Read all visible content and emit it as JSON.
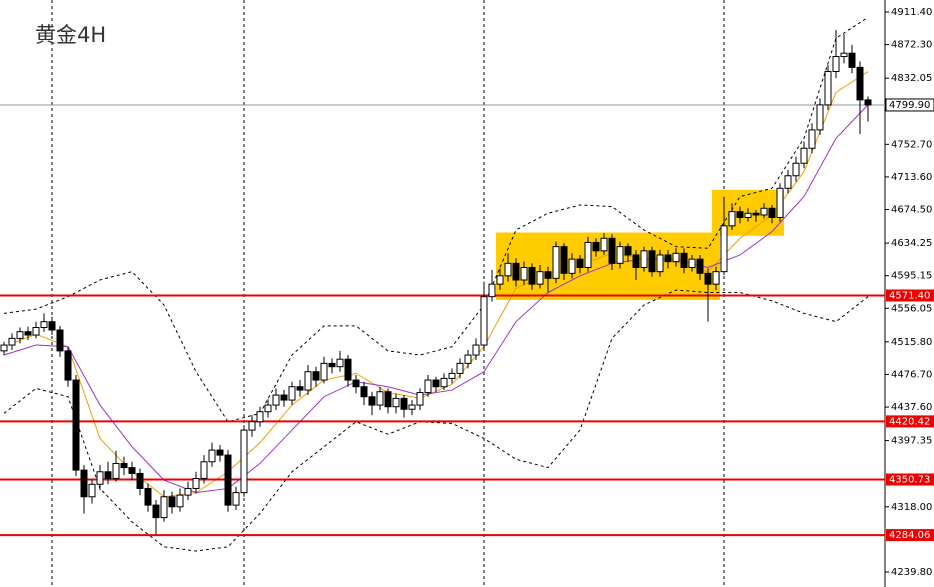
{
  "chart_data": {
    "type": "candlestick",
    "title": "黄金4H",
    "ylim": [
      4239.8,
      4911.4
    ],
    "yticks": [
      {
        "value": 4911.4,
        "label": "4911.40"
      },
      {
        "value": 4872.3,
        "label": "4872.30"
      },
      {
        "value": 4832.05,
        "label": "4832.05"
      },
      {
        "value": 4752.7,
        "label": "4752.70"
      },
      {
        "value": 4713.6,
        "label": "4713.60"
      },
      {
        "value": 4674.5,
        "label": "4674.50"
      },
      {
        "value": 4634.25,
        "label": "4634.25"
      },
      {
        "value": 4595.15,
        "label": "4595.15"
      },
      {
        "value": 4556.05,
        "label": "4556.05"
      },
      {
        "value": 4515.8,
        "label": "4515.80"
      },
      {
        "value": 4476.7,
        "label": "4476.70"
      },
      {
        "value": 4437.6,
        "label": "4437.60"
      },
      {
        "value": 4397.35,
        "label": "4397.35"
      },
      {
        "value": 4318,
        "label": "4318.00"
      },
      {
        "value": 4239.8,
        "label": "4239.80"
      }
    ],
    "levels": [
      {
        "value": 4571.4,
        "label": "4571.40"
      },
      {
        "value": 4420.42,
        "label": "4420.42"
      },
      {
        "value": 4350.73,
        "label": "4350.73"
      },
      {
        "value": 4284.06,
        "label": "4284.06"
      }
    ],
    "level_color": "#ee0000",
    "last_price": {
      "value": 4799.9,
      "label": "4799.90"
    },
    "up_color": "#ffffff",
    "down_color": "#000000",
    "ohlc": [
      [
        4505,
        4516,
        4500,
        4512
      ],
      [
        4512,
        4526,
        4506,
        4520
      ],
      [
        4520,
        4533,
        4514,
        4528
      ],
      [
        4528,
        4534,
        4518,
        4524
      ],
      [
        4524,
        4540,
        4520,
        4533
      ],
      [
        4533,
        4550,
        4528,
        4540
      ],
      [
        4540,
        4546,
        4524,
        4530
      ],
      [
        4530,
        4535,
        4498,
        4505
      ],
      [
        4505,
        4510,
        4462,
        4470
      ],
      [
        4470,
        4476,
        4355,
        4362
      ],
      [
        4362,
        4368,
        4310,
        4330
      ],
      [
        4330,
        4350,
        4322,
        4345
      ],
      [
        4345,
        4368,
        4338,
        4360
      ],
      [
        4360,
        4372,
        4345,
        4352
      ],
      [
        4352,
        4385,
        4348,
        4370
      ],
      [
        4370,
        4378,
        4356,
        4365
      ],
      [
        4365,
        4372,
        4350,
        4358
      ],
      [
        4358,
        4364,
        4332,
        4340
      ],
      [
        4340,
        4346,
        4312,
        4320
      ],
      [
        4320,
        4326,
        4285,
        4305
      ],
      [
        4305,
        4338,
        4300,
        4330
      ],
      [
        4330,
        4336,
        4310,
        4318
      ],
      [
        4318,
        4340,
        4312,
        4332
      ],
      [
        4332,
        4348,
        4326,
        4340
      ],
      [
        4340,
        4360,
        4334,
        4352
      ],
      [
        4352,
        4380,
        4346,
        4372
      ],
      [
        4372,
        4395,
        4366,
        4386
      ],
      [
        4386,
        4392,
        4372,
        4380
      ],
      [
        4380,
        4386,
        4312,
        4320
      ],
      [
        4320,
        4342,
        4314,
        4335
      ],
      [
        4335,
        4416,
        4330,
        4410
      ],
      [
        4410,
        4428,
        4402,
        4420
      ],
      [
        4420,
        4438,
        4414,
        4432
      ],
      [
        4432,
        4447,
        4425,
        4440
      ],
      [
        4440,
        4460,
        4434,
        4452
      ],
      [
        4452,
        4458,
        4438,
        4446
      ],
      [
        4446,
        4468,
        4440,
        4462
      ],
      [
        4462,
        4470,
        4450,
        4458
      ],
      [
        4458,
        4488,
        4452,
        4480
      ],
      [
        4480,
        4486,
        4462,
        4470
      ],
      [
        4470,
        4498,
        4466,
        4490
      ],
      [
        4490,
        4496,
        4478,
        4486
      ],
      [
        4486,
        4505,
        4480,
        4495
      ],
      [
        4495,
        4500,
        4462,
        4470
      ],
      [
        4470,
        4476,
        4454,
        4462
      ],
      [
        4462,
        4468,
        4440,
        4450
      ],
      [
        4450,
        4456,
        4428,
        4440
      ],
      [
        4440,
        4462,
        4434,
        4456
      ],
      [
        4456,
        4460,
        4430,
        4438
      ],
      [
        4438,
        4454,
        4430,
        4448
      ],
      [
        4448,
        4452,
        4425,
        4435
      ],
      [
        4435,
        4446,
        4428,
        4440
      ],
      [
        4440,
        4460,
        4434,
        4455
      ],
      [
        4455,
        4476,
        4450,
        4470
      ],
      [
        4470,
        4474,
        4456,
        4462
      ],
      [
        4462,
        4478,
        4458,
        4472
      ],
      [
        4472,
        4484,
        4466,
        4478
      ],
      [
        4478,
        4496,
        4472,
        4490
      ],
      [
        4490,
        4506,
        4484,
        4500
      ],
      [
        4500,
        4520,
        4494,
        4512
      ],
      [
        4512,
        4588,
        4506,
        4570
      ],
      [
        4570,
        4602,
        4564,
        4585
      ],
      [
        4585,
        4604,
        4578,
        4595
      ],
      [
        4595,
        4622,
        4588,
        4610
      ],
      [
        4610,
        4616,
        4582,
        4590
      ],
      [
        4590,
        4612,
        4584,
        4605
      ],
      [
        4605,
        4610,
        4578,
        4585
      ],
      [
        4585,
        4608,
        4580,
        4600
      ],
      [
        4600,
        4606,
        4575,
        4592
      ],
      [
        4592,
        4636,
        4586,
        4630
      ],
      [
        4630,
        4634,
        4590,
        4598
      ],
      [
        4598,
        4622,
        4592,
        4615
      ],
      [
        4615,
        4620,
        4598,
        4605
      ],
      [
        4605,
        4642,
        4600,
        4635
      ],
      [
        4635,
        4640,
        4618,
        4625
      ],
      [
        4625,
        4646,
        4620,
        4640
      ],
      [
        4640,
        4645,
        4602,
        4610
      ],
      [
        4610,
        4636,
        4604,
        4630
      ],
      [
        4630,
        4634,
        4612,
        4620
      ],
      [
        4620,
        4626,
        4590,
        4605
      ],
      [
        4605,
        4630,
        4600,
        4625
      ],
      [
        4625,
        4630,
        4594,
        4600
      ],
      [
        4600,
        4626,
        4594,
        4620
      ],
      [
        4620,
        4626,
        4604,
        4612
      ],
      [
        4612,
        4628,
        4606,
        4622
      ],
      [
        4622,
        4628,
        4598,
        4605
      ],
      [
        4605,
        4620,
        4600,
        4615
      ],
      [
        4615,
        4620,
        4590,
        4598
      ],
      [
        4598,
        4604,
        4540,
        4585
      ],
      [
        4585,
        4606,
        4578,
        4600
      ],
      [
        4600,
        4690,
        4596,
        4655
      ],
      [
        4655,
        4682,
        4650,
        4672
      ],
      [
        4672,
        4678,
        4658,
        4665
      ],
      [
        4665,
        4676,
        4660,
        4670
      ],
      [
        4670,
        4674,
        4660,
        4668
      ],
      [
        4668,
        4682,
        4664,
        4676
      ],
      [
        4676,
        4680,
        4658,
        4665
      ],
      [
        4665,
        4706,
        4660,
        4700
      ],
      [
        4700,
        4722,
        4694,
        4715
      ],
      [
        4715,
        4738,
        4708,
        4730
      ],
      [
        4730,
        4756,
        4724,
        4748
      ],
      [
        4748,
        4778,
        4742,
        4770
      ],
      [
        4770,
        4808,
        4764,
        4800
      ],
      [
        4800,
        4848,
        4794,
        4840
      ],
      [
        4840,
        4890,
        4832,
        4858
      ],
      [
        4858,
        4885,
        4850,
        4862
      ],
      [
        4862,
        4872,
        4838,
        4845
      ],
      [
        4845,
        4852,
        4765,
        4806
      ],
      [
        4806,
        4810,
        4780,
        4799.9
      ]
    ],
    "indicators": [
      {
        "color": "#f0a000",
        "dash": false,
        "x": [
          0,
          4,
          8,
          12,
          16,
          20,
          24,
          28,
          32,
          36,
          40,
          44,
          48,
          52,
          56,
          60,
          64,
          68,
          72,
          76,
          80,
          84,
          88,
          92,
          96,
          100,
          104,
          108
        ],
        "values": [
          4510,
          4525,
          4510,
          4400,
          4360,
          4330,
          4335,
          4360,
          4395,
          4440,
          4470,
          4478,
          4455,
          4448,
          4465,
          4510,
          4580,
          4598,
          4608,
          4622,
          4615,
          4612,
          4600,
          4640,
          4668,
          4720,
          4815,
          4840
        ]
      },
      {
        "color": "#9933cc",
        "dash": false,
        "x": [
          0,
          4,
          8,
          12,
          16,
          20,
          24,
          28,
          32,
          36,
          40,
          44,
          48,
          52,
          56,
          60,
          64,
          68,
          72,
          76,
          80,
          84,
          88,
          92,
          96,
          100,
          104,
          108
        ],
        "values": [
          4500,
          4512,
          4510,
          4440,
          4390,
          4350,
          4335,
          4340,
          4370,
          4410,
          4450,
          4468,
          4462,
          4452,
          4458,
          4480,
          4540,
          4575,
          4595,
          4610,
          4615,
          4615,
          4605,
          4620,
          4648,
          4690,
          4760,
          4800
        ]
      },
      {
        "color": "#000000",
        "dash": true,
        "x": [
          0,
          4,
          8,
          12,
          16,
          20,
          24,
          28,
          32,
          36,
          40,
          44,
          48,
          52,
          56,
          60,
          64,
          68,
          72,
          76,
          80,
          84,
          88,
          92,
          96,
          100,
          104,
          108
        ],
        "values": [
          4550,
          4555,
          4570,
          4590,
          4600,
          4560,
          4480,
          4420,
          4430,
          4500,
          4535,
          4535,
          4505,
          4500,
          4510,
          4560,
          4650,
          4670,
          4680,
          4678,
          4650,
          4630,
          4628,
          4690,
          4700,
          4760,
          4880,
          4905
        ]
      },
      {
        "color": "#000000",
        "dash": true,
        "x": [
          0,
          4,
          8,
          12,
          16,
          20,
          24,
          28,
          32,
          36,
          40,
          44,
          48,
          52,
          56,
          60,
          64,
          68,
          72,
          76,
          80,
          84,
          88,
          92,
          96,
          100,
          104,
          108
        ],
        "values": [
          4430,
          4460,
          4450,
          4340,
          4300,
          4270,
          4265,
          4270,
          4310,
          4360,
          4390,
          4420,
          4405,
          4420,
          4418,
          4400,
          4375,
          4365,
          4410,
          4520,
          4560,
          4578,
          4575,
          4575,
          4565,
          4550,
          4540,
          4570
        ]
      }
    ],
    "zones": [
      {
        "start": 62,
        "end": 89,
        "high": 4647,
        "low": 4566,
        "color": "#ffcc00"
      },
      {
        "start": 89,
        "end": 97,
        "high": 4698,
        "low": 4643,
        "color": "#ffcc00"
      }
    ]
  }
}
